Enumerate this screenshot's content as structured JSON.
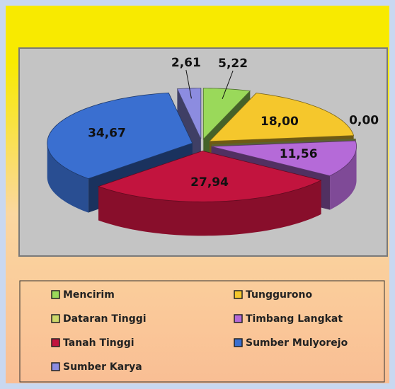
{
  "chart_data": {
    "type": "pie",
    "categories": [
      "Mencirim",
      "Tunggurono",
      "Dataran Tinggi",
      "Timbang Langkat",
      "Tanah Tinggi",
      "Sumber Mulyorejo",
      "Sumber Karya"
    ],
    "values": [
      5.22,
      18.0,
      0.0,
      11.56,
      27.94,
      34.67,
      2.61
    ],
    "value_labels": [
      "5,22",
      "18,00",
      "0,00",
      "11,56",
      "27,94",
      "34,67",
      "2,61"
    ],
    "colors": [
      "#9ad95a",
      "#f5c72c",
      "#cdd96a",
      "#b56ad8",
      "#c2143e",
      "#3a6fd0",
      "#8c8ce0"
    ],
    "legend": "bottom"
  }
}
